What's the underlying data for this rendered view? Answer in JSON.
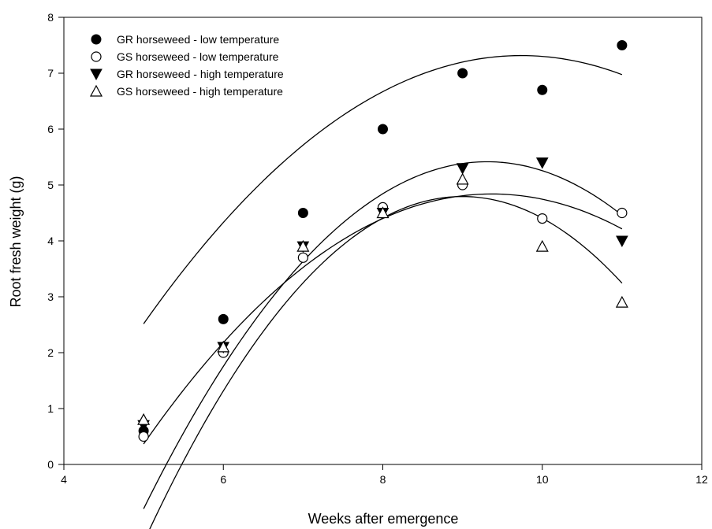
{
  "chart_data": {
    "type": "scatter",
    "xlabel": "Weeks after emergence",
    "ylabel": "Root fresh weight (g)",
    "xlim": [
      4,
      12
    ],
    "ylim": [
      0,
      8
    ],
    "xticks": [
      4,
      6,
      8,
      10,
      12
    ],
    "yticks": [
      0,
      1,
      2,
      3,
      4,
      5,
      6,
      7,
      8
    ],
    "grid": false,
    "legend_position": "top-left",
    "series": [
      {
        "name": "GR horseweed - low temperature",
        "marker": "filled-circle",
        "color": "#000000",
        "x": [
          5,
          6,
          7,
          8,
          9,
          10,
          11
        ],
        "y": [
          0.6,
          2.6,
          4.5,
          6.0,
          7.0,
          6.7,
          7.5
        ],
        "fit": [
          -0.2139,
          4.1654,
          -12.963
        ]
      },
      {
        "name": "GS horseweed - low temperature",
        "marker": "open-circle",
        "color": "#000000",
        "x": [
          5,
          6,
          7,
          8,
          9,
          10,
          11
        ],
        "y": [
          0.5,
          2.0,
          3.7,
          4.6,
          5.0,
          4.4,
          4.5
        ],
        "fit": [
          -0.2345,
          4.3935,
          -15.7392
        ]
      },
      {
        "name": "GR horseweed - high temperature",
        "marker": "filled-triangle-down",
        "color": "#000000",
        "x": [
          5,
          6,
          7,
          8,
          9,
          10,
          11
        ],
        "y": [
          0.7,
          2.1,
          3.9,
          4.5,
          5.3,
          5.4,
          4.0
        ],
        "fit": [
          -0.3345,
          6.2274,
          -23.5677
        ]
      },
      {
        "name": "GS horseweed - high temperature",
        "marker": "open-triangle-up",
        "color": "#000000",
        "x": [
          5,
          6,
          7,
          8,
          9,
          10,
          11
        ],
        "y": [
          0.8,
          2.1,
          3.9,
          4.5,
          5.1,
          3.9,
          2.9
        ],
        "fit": [
          -0.3869,
          6.963,
          -26.5338
        ]
      }
    ]
  }
}
